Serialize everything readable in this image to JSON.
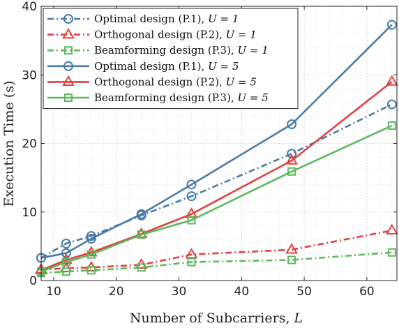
{
  "chart_data": {
    "type": "line",
    "xlabel": "Number of Subcarriers, L",
    "ylabel": "Execution Time (s)",
    "xlim": [
      8,
      64.8
    ],
    "ylim": [
      0,
      40
    ],
    "xticks": [
      10,
      20,
      30,
      40,
      50,
      60
    ],
    "yticks": [
      0,
      10,
      20,
      30,
      40
    ],
    "grid": true,
    "legend_position": "top-left",
    "x": [
      8,
      12,
      16,
      24,
      32,
      48,
      64
    ],
    "series": [
      {
        "name": "Optimal design (P.1), U = 1",
        "values": [
          3.3,
          5.4,
          6.5,
          9.5,
          12.3,
          18.5,
          25.7
        ],
        "color": "#4a7ba6",
        "dash": true,
        "marker": "circle"
      },
      {
        "name": "Orthogonal design (P.2), U = 1",
        "values": [
          1.6,
          1.8,
          1.9,
          2.3,
          3.8,
          4.5,
          7.3
        ],
        "color": "#e04040",
        "dash": true,
        "marker": "triangle"
      },
      {
        "name": "Beamforming design (P.3), U = 1",
        "values": [
          1.1,
          1.3,
          1.5,
          1.9,
          2.7,
          3.0,
          4.1
        ],
        "color": "#5cb85c",
        "dash": true,
        "marker": "square"
      },
      {
        "name": "Optimal design (P.1), U = 5",
        "values": [
          3.3,
          4.0,
          6.1,
          9.7,
          14.0,
          22.8,
          37.3
        ],
        "color": "#4a7ba6",
        "dash": false,
        "marker": "circle"
      },
      {
        "name": "Orthogonal design (P.2), U = 5",
        "values": [
          1.5,
          3.0,
          4.1,
          6.8,
          9.7,
          17.5,
          29.0
        ],
        "color": "#e04040",
        "dash": false,
        "marker": "triangle"
      },
      {
        "name": "Beamforming design (P.3), U = 5",
        "values": [
          1.3,
          2.7,
          3.8,
          6.7,
          8.8,
          15.9,
          22.6
        ],
        "color": "#5cb85c",
        "dash": false,
        "marker": "square"
      }
    ]
  }
}
